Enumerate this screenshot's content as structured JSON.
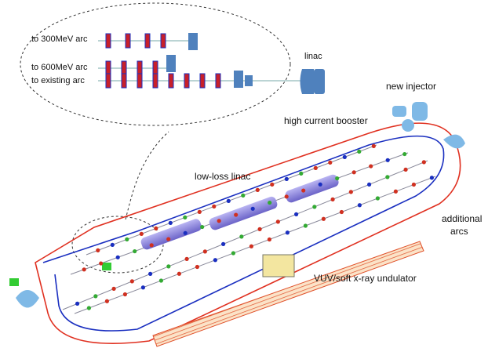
{
  "inset": {
    "arc_300": "to 300MeV arc",
    "arc_600": "to 600MeV arc",
    "arc_existing": "to existing arc",
    "linac": "linac"
  },
  "labels": {
    "new_injector": "new injector",
    "booster": "high current booster",
    "low_loss_linac": "low-loss linac",
    "additional_arcs": [
      "additional",
      "arcs"
    ],
    "undulator": "VUV/soft x-ray undulator"
  }
}
